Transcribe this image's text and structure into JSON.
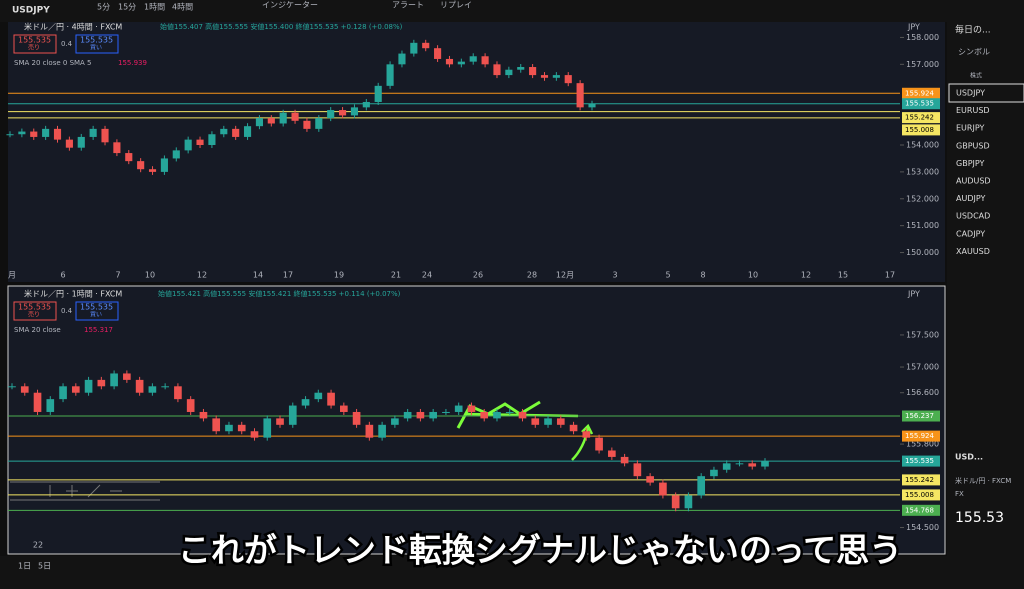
{
  "toolbar": {
    "symbol": "USDJPY",
    "intervals": [
      "5分",
      "15分",
      "1時間",
      "4時間"
    ],
    "indicators": "インジケーター",
    "alert": "アラート",
    "replay": "リプレイ"
  },
  "panes": [
    {
      "title": "米ドル／円 · 4時間 · FXCM",
      "ohlc": "始値155.407 高値155.555 安値155.400 終値155.535 +0.128 (+0.08%)",
      "sell": "155.535",
      "sell_label": "売り",
      "spread": "0.4",
      "buy": "155.535",
      "buy_label": "買い",
      "sma": "SMA 20 close 0 SMA 5",
      "sma_value": "155.939",
      "currency": "JPY",
      "ylim": [
        149.5,
        158.5
      ],
      "yticks": [
        {
          "value": 158,
          "label": "158.000"
        },
        {
          "value": 157,
          "label": "157.000"
        },
        {
          "value": 154,
          "label": "154.000"
        },
        {
          "value": 153,
          "label": "153.000"
        },
        {
          "value": 152,
          "label": "152.000"
        },
        {
          "value": 151,
          "label": "151.000"
        },
        {
          "value": 150,
          "label": "150.000"
        }
      ],
      "price_tags": [
        {
          "value": 155.924,
          "color": "#f7931a"
        },
        {
          "value": 155.535,
          "color": "#26a69a"
        },
        {
          "value": 155.242,
          "color": "#f5e663"
        },
        {
          "value": 155.008,
          "color": "#f5e663"
        }
      ],
      "dates": [
        "月",
        "6",
        "7",
        "10",
        "12",
        "14",
        "17",
        "19",
        "21",
        "24",
        "26",
        "28",
        "12月",
        "3",
        "5",
        "8",
        "10",
        "12",
        "15",
        "17"
      ],
      "closes": [
        154.4,
        154.5,
        154.3,
        154.6,
        154.2,
        153.9,
        154.3,
        154.6,
        154.1,
        153.7,
        153.4,
        153.1,
        153.0,
        153.5,
        153.8,
        154.2,
        154.0,
        154.4,
        154.6,
        154.3,
        154.7,
        155.0,
        154.8,
        155.2,
        154.9,
        154.6,
        155.0,
        155.3,
        155.1,
        155.4,
        155.6,
        156.2,
        157.0,
        157.4,
        157.8,
        157.6,
        157.2,
        157.0,
        157.1,
        157.3,
        157.0,
        156.6,
        156.8,
        156.9,
        156.6,
        156.5,
        156.6,
        156.3,
        155.4,
        155.535
      ]
    },
    {
      "title": "米ドル／円 · 1時間 · FXCM",
      "ohlc": "始値155.421 高値155.555 安値155.421 終値155.535 +0.114 (+0.07%)",
      "sell": "155.535",
      "sell_label": "売り",
      "spread": "0.4",
      "buy": "155.535",
      "buy_label": "買い",
      "sma": "SMA 20 close",
      "sma_value": "155.317",
      "currency": "JPY",
      "ylim": [
        154.15,
        158.2
      ],
      "yticks": [
        {
          "value": 157.5,
          "label": "157.500"
        },
        {
          "value": 157,
          "label": "157.000"
        },
        {
          "value": 156.6,
          "label": "156.600"
        },
        {
          "value": 155.8,
          "label": "155.800"
        },
        {
          "value": 154.5,
          "label": "154.500"
        }
      ],
      "price_tags": [
        {
          "value": 156.237,
          "color": "#4caf50"
        },
        {
          "value": 155.924,
          "color": "#f7931a"
        },
        {
          "value": 155.535,
          "color": "#26a69a"
        },
        {
          "value": 155.242,
          "color": "#f5e663"
        },
        {
          "value": 155.008,
          "color": "#f5e663"
        },
        {
          "value": 154.768,
          "color": "#4caf50"
        }
      ],
      "dates": [
        "22"
      ],
      "closes": [
        156.7,
        156.6,
        156.3,
        156.5,
        156.7,
        156.6,
        156.8,
        156.7,
        156.9,
        156.8,
        156.6,
        156.7,
        156.7,
        156.5,
        156.3,
        156.2,
        156.0,
        156.1,
        156.0,
        155.9,
        156.2,
        156.1,
        156.4,
        156.5,
        156.6,
        156.4,
        156.3,
        156.1,
        155.9,
        156.1,
        156.2,
        156.3,
        156.2,
        156.3,
        156.3,
        156.4,
        156.3,
        156.2,
        156.3,
        156.3,
        156.2,
        156.1,
        156.2,
        156.1,
        156.0,
        155.9,
        155.7,
        155.6,
        155.5,
        155.3,
        155.2,
        155.0,
        154.8,
        155.0,
        155.3,
        155.4,
        155.5,
        155.5,
        155.45,
        155.535
      ]
    }
  ],
  "watchlist": {
    "title": "毎日の...",
    "symbol_header": "シンボル",
    "group": "株式",
    "symbols": [
      "USDJPY",
      "EURUSD",
      "EURJPY",
      "GBPUSD",
      "GBPJPY",
      "AUDUSD",
      "AUDJPY",
      "USDCAD",
      "CADJPY",
      "XAUUSD"
    ],
    "detail_symbol": "USD...",
    "detail_name": "米ドル/円 · FXCM",
    "detail_type": "FX",
    "detail_price": "155.53"
  },
  "bottom": {
    "ranges": [
      "1日",
      "5日"
    ]
  },
  "subtitle": "これがトレンド転換シグナルじゃないのって思う"
}
